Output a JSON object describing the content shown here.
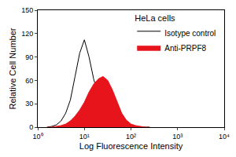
{
  "chart_data": {
    "type": "area",
    "title": "HeLa cells",
    "x_label": "Log Fluorescence Intensity",
    "y_label": "Relative Cell Number",
    "log": "x",
    "x": [
      1.58,
      2,
      2.51,
      3.16,
      3.98,
      5.01,
      6.31,
      7.94,
      10,
      12.6,
      15.8,
      20,
      25.1,
      31.6,
      39.8,
      50.1,
      63.1,
      79.4,
      100,
      126,
      158,
      200,
      251
    ],
    "series": [
      {
        "name": "Isotype control",
        "color": "#ffffff",
        "values": [
          0,
          1,
          3,
          8,
          18,
          35,
          65,
          95,
          112,
          90,
          62,
          40,
          22,
          10,
          4,
          2,
          1,
          0,
          0,
          0,
          0,
          0,
          0
        ]
      },
      {
        "name": "Anti-PRPF8",
        "color": "#e8141c",
        "values": [
          0,
          0,
          1,
          2,
          4,
          8,
          14,
          22,
          32,
          45,
          55,
          62,
          65,
          60,
          48,
          32,
          18,
          9,
          4,
          2,
          1,
          0,
          0
        ]
      }
    ],
    "xlim": [
      1,
      10000
    ],
    "xticks": [
      {
        "value": 1,
        "label": "10⁰"
      },
      {
        "value": 10,
        "label": "10¹"
      },
      {
        "value": 100,
        "label": "10²"
      },
      {
        "value": 1000,
        "label": "10³"
      },
      {
        "value": 10000,
        "label": "10⁴"
      }
    ],
    "ylim": [
      0,
      150
    ],
    "yticks": [
      0,
      30,
      60,
      90,
      120,
      150
    ],
    "grid": false,
    "legend": "top right"
  }
}
